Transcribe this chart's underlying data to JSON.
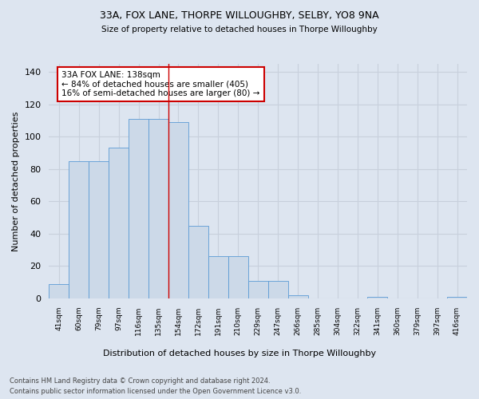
{
  "title1": "33A, FOX LANE, THORPE WILLOUGHBY, SELBY, YO8 9NA",
  "title2": "Size of property relative to detached houses in Thorpe Willoughby",
  "xlabel": "Distribution of detached houses by size in Thorpe Willoughby",
  "ylabel": "Number of detached properties",
  "categories": [
    "41sqm",
    "60sqm",
    "79sqm",
    "97sqm",
    "116sqm",
    "135sqm",
    "154sqm",
    "172sqm",
    "191sqm",
    "210sqm",
    "229sqm",
    "247sqm",
    "266sqm",
    "285sqm",
    "304sqm",
    "322sqm",
    "341sqm",
    "360sqm",
    "379sqm",
    "397sqm",
    "416sqm"
  ],
  "values": [
    9,
    85,
    85,
    93,
    111,
    111,
    109,
    45,
    26,
    26,
    11,
    11,
    2,
    0,
    0,
    0,
    1,
    0,
    0,
    0,
    1
  ],
  "bar_color": "#ccd9e8",
  "bar_edge_color": "#5b9bd5",
  "background_color": "#dde5f0",
  "grid_color": "#c8d0dc",
  "annotation_text": "33A FOX LANE: 138sqm\n← 84% of detached houses are smaller (405)\n16% of semi-detached houses are larger (80) →",
  "vline_x": 6,
  "vline_color": "#cc0000",
  "ylim": [
    0,
    145
  ],
  "yticks": [
    0,
    20,
    40,
    60,
    80,
    100,
    120,
    140
  ],
  "footer1": "Contains HM Land Registry data © Crown copyright and database right 2024.",
  "footer2": "Contains public sector information licensed under the Open Government Licence v3.0."
}
